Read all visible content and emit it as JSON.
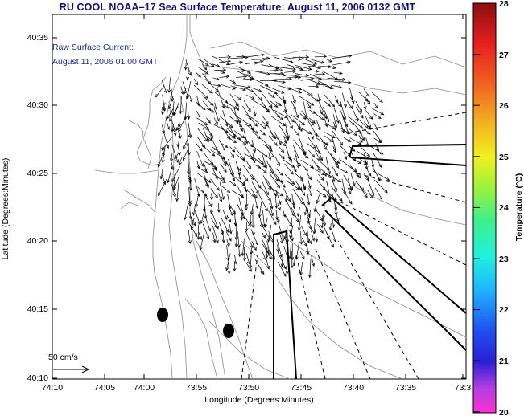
{
  "title": "RU COOL  NOAA–17  Sea Surface Temperature:  August 11, 2006 0132 GMT",
  "inset": {
    "line1": "Raw Surface Current:",
    "line2": "August 11, 2006 01:00 GMT"
  },
  "axes": {
    "xlabel": "Longitude (Degrees:Minutes)",
    "ylabel": "Latitude (Degrees:Minutes)",
    "x_ticks": [
      "74:10",
      "74:05",
      "74:00",
      "73:55",
      "73:50",
      "73:45",
      "73:40",
      "73:35",
      "73:3"
    ],
    "y_ticks": [
      "40:35",
      "40:30",
      "40:25",
      "40:20",
      "40:15",
      "40:10"
    ]
  },
  "scale": {
    "label": "50 cm/s"
  },
  "colorbar": {
    "label": "Temperature (°C)",
    "ticks": [
      "28",
      "27",
      "26",
      "25",
      "24",
      "23",
      "22",
      "21",
      "20"
    ],
    "min": 20,
    "max": 28
  },
  "colors": {
    "title": "#10127a",
    "inset_text": "#1c2a8a",
    "arrows": "#000000",
    "contours": "#8a8a8a"
  }
}
